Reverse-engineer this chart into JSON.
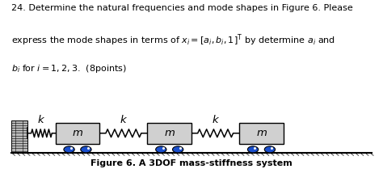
{
  "bg_color": "#ffffff",
  "text_color": "#000000",
  "wall_fill": "#b0b0b0",
  "wall_hatch_color": "#000000",
  "mass_fill": "#d0d0d0",
  "mass_edge": "#000000",
  "spring_color": "#000000",
  "floor_color": "#000000",
  "wheel_fill": "#1a4fcc",
  "wheel_edge": "#000000",
  "title_line1": "24. Determine the natural frequencies and mode shapes in Figure 6. Please",
  "title_line2": "express the mode shapes in terms of $x_i = [a_i, b_i, 1]^\\mathrm{T}$ by determine $a_i$ and",
  "title_line3": "$b_i$ for $i = 1,2,3$.  (8points)",
  "caption": "Figure 6. A 3DOF mass-stiffness system",
  "title_fontsize": 8.0,
  "caption_fontsize": 8.0,
  "label_fontsize": 9.5
}
